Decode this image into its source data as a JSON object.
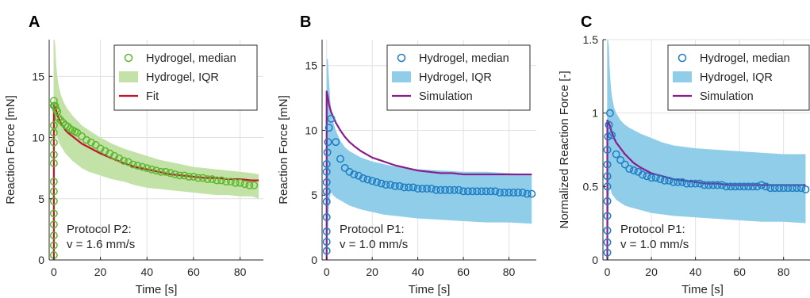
{
  "colors": {
    "green_marker": "#5cb82b",
    "green_band": "#c3e2a8",
    "red_line": "#c4122f",
    "blue_marker": "#1d7dc4",
    "blue_band": "#8fcde9",
    "purple_line": "#8a1d8e",
    "grid": "#e1e1e1",
    "axis": "#262626"
  },
  "chart_data": [
    {
      "panel": "A",
      "type": "line",
      "xlabel": "Time [s]",
      "ylabel": "Reaction Force [mN]",
      "xlim": [
        -2,
        90
      ],
      "ylim": [
        0,
        18
      ],
      "xticks": [
        0,
        20,
        40,
        60,
        80
      ],
      "yticks": [
        0,
        5,
        10,
        15
      ],
      "grid": true,
      "legend_position": "top-right",
      "legend": [
        {
          "kind": "marker",
          "label": "Hydrogel, median"
        },
        {
          "kind": "band",
          "label": "Hydrogel, IQR"
        },
        {
          "kind": "line",
          "label": "Fit"
        }
      ],
      "annotation": {
        "line1": "Protocol P2:",
        "line2": "v = 1.6 mm/s"
      },
      "marker_color": "#5cb82b",
      "band_color": "#c3e2a8",
      "line_color": "#c4122f",
      "median": {
        "x": [
          0,
          0,
          0,
          0,
          0,
          0,
          0,
          0,
          0,
          0,
          0,
          0,
          0,
          0,
          0,
          0.5,
          1,
          1.5,
          2,
          3,
          4,
          5,
          6,
          7,
          8,
          9,
          10,
          12,
          14,
          16,
          18,
          20,
          22,
          24,
          26,
          28,
          30,
          32,
          34,
          36,
          38,
          40,
          42,
          44,
          46,
          48,
          50,
          52,
          54,
          56,
          58,
          60,
          62,
          64,
          66,
          68,
          70,
          72,
          74,
          76,
          78,
          80,
          82,
          84,
          86
        ],
        "y": [
          0.4,
          1.2,
          2,
          2.9,
          3.8,
          4.8,
          5.6,
          6.4,
          7.9,
          8.6,
          9.6,
          10.4,
          11,
          12.6,
          13,
          12.6,
          12.3,
          12.1,
          11.6,
          11.4,
          11.2,
          11,
          10.9,
          10.7,
          10.6,
          10.5,
          10.4,
          10.1,
          9.8,
          9.6,
          9.4,
          9.1,
          8.9,
          8.7,
          8.5,
          8.3,
          8.1,
          8,
          7.8,
          7.7,
          7.6,
          7.5,
          7.4,
          7.3,
          7.2,
          7.2,
          7.1,
          7,
          6.9,
          6.9,
          6.8,
          6.8,
          6.7,
          6.7,
          6.6,
          6.6,
          6.5,
          6.5,
          6.4,
          6.4,
          6.3,
          6.3,
          6.2,
          6.1,
          6.1
        ]
      },
      "iqr": {
        "x": [
          0,
          0.3,
          0.6,
          1,
          1.5,
          2,
          3,
          4,
          5,
          6,
          8,
          10,
          12,
          15,
          20,
          25,
          30,
          35,
          40,
          45,
          50,
          55,
          60,
          65,
          70,
          75,
          80,
          85,
          88
        ],
        "upper": [
          18,
          18,
          17.5,
          16,
          15,
          14.3,
          13.5,
          13,
          12.6,
          12.3,
          11.8,
          11.4,
          11,
          10.6,
          10,
          9.5,
          9.1,
          8.8,
          8.5,
          8.2,
          8,
          7.8,
          7.6,
          7.5,
          7.4,
          7.3,
          7.2,
          7.1,
          7
        ],
        "lower": [
          0,
          9.5,
          10.5,
          10.3,
          10,
          9.7,
          9.3,
          9,
          8.7,
          8.5,
          8.1,
          7.8,
          7.5,
          7.2,
          6.9,
          6.6,
          6.4,
          6.1,
          5.9,
          5.8,
          5.7,
          5.6,
          5.5,
          5.4,
          5.3,
          5.3,
          5.2,
          5.2,
          5
        ]
      },
      "fit": {
        "x": [
          0,
          0,
          0.5,
          1,
          2,
          3,
          4,
          5,
          6,
          8,
          10,
          12,
          15,
          20,
          25,
          30,
          35,
          40,
          45,
          50,
          55,
          60,
          65,
          70,
          75,
          80,
          85,
          88
        ],
        "y": [
          0,
          12.6,
          12.5,
          12.2,
          11.6,
          11.2,
          10.9,
          10.6,
          10.4,
          10.1,
          9.8,
          9.5,
          9.2,
          8.7,
          8.3,
          7.9,
          7.6,
          7.4,
          7.2,
          7,
          6.9,
          6.8,
          6.7,
          6.7,
          6.6,
          6.6,
          6.5,
          6.5
        ]
      }
    },
    {
      "panel": "B",
      "type": "line",
      "xlabel": "Time [s]",
      "ylabel": "Reaction Force [mN]",
      "xlim": [
        -2,
        92
      ],
      "ylim": [
        0,
        17
      ],
      "xticks": [
        0,
        20,
        40,
        60,
        80
      ],
      "yticks": [
        0,
        5,
        10,
        15
      ],
      "grid": true,
      "legend_position": "top-right",
      "legend": [
        {
          "kind": "marker",
          "label": "Hydrogel, median"
        },
        {
          "kind": "band",
          "label": "Hydrogel, IQR"
        },
        {
          "kind": "line",
          "label": "Simulation"
        }
      ],
      "annotation": {
        "line1": "Protocol P1:",
        "line2": "v = 1.0 mm/s"
      },
      "marker_color": "#1d7dc4",
      "band_color": "#8fcde9",
      "line_color": "#8a1d8e",
      "median": {
        "x": [
          0,
          0,
          0,
          0,
          0,
          0,
          0,
          0,
          0,
          0.3,
          0.6,
          1,
          2,
          4,
          6,
          8,
          10,
          12,
          14,
          16,
          18,
          20,
          22,
          24,
          26,
          28,
          30,
          32,
          34,
          36,
          38,
          40,
          42,
          44,
          46,
          48,
          50,
          52,
          54,
          56,
          58,
          60,
          62,
          64,
          66,
          68,
          70,
          72,
          74,
          76,
          78,
          80,
          82,
          84,
          86,
          88,
          90
        ],
        "y": [
          0.7,
          1.4,
          2.2,
          3.3,
          4.5,
          5.3,
          6,
          6.8,
          7.4,
          8.3,
          9.1,
          10.2,
          10.9,
          9.1,
          7.8,
          7.1,
          6.8,
          6.6,
          6.5,
          6.3,
          6.2,
          6.1,
          6,
          5.9,
          5.8,
          5.8,
          5.7,
          5.7,
          5.6,
          5.6,
          5.6,
          5.5,
          5.5,
          5.5,
          5.5,
          5.4,
          5.4,
          5.4,
          5.4,
          5.4,
          5.4,
          5.3,
          5.3,
          5.3,
          5.3,
          5.3,
          5.3,
          5.3,
          5.3,
          5.2,
          5.2,
          5.2,
          5.2,
          5.2,
          5.2,
          5.1,
          5.1
        ]
      },
      "iqr": {
        "x": [
          0,
          0.5,
          1,
          1.5,
          2,
          3,
          4,
          6,
          8,
          10,
          15,
          20,
          25,
          30,
          40,
          50,
          60,
          70,
          80,
          90
        ],
        "upper": [
          15.5,
          15.5,
          14,
          12.5,
          11.5,
          10.6,
          10,
          9.2,
          8.7,
          8.4,
          7.9,
          7.6,
          7.4,
          7.2,
          7,
          6.9,
          6.8,
          6.8,
          6.7,
          6.6
        ],
        "lower": [
          0,
          2,
          4,
          5,
          5.2,
          5,
          4.8,
          4.6,
          4.4,
          4.2,
          3.9,
          3.7,
          3.5,
          3.4,
          3.2,
          3.1,
          3,
          2.9,
          2.9,
          2.8
        ]
      },
      "simulation": {
        "x": [
          0,
          0,
          0.5,
          1,
          2,
          3,
          4,
          5,
          6,
          8,
          10,
          12,
          15,
          20,
          25,
          30,
          35,
          40,
          45,
          50,
          55,
          60,
          65,
          70,
          75,
          80,
          85,
          90
        ],
        "y": [
          0,
          13,
          12.6,
          12,
          11.4,
          11,
          10.6,
          10.3,
          10,
          9.5,
          9.1,
          8.8,
          8.4,
          7.9,
          7.6,
          7.3,
          7.1,
          6.9,
          6.8,
          6.7,
          6.7,
          6.6,
          6.6,
          6.6,
          6.6,
          6.6,
          6.6,
          6.6
        ]
      }
    },
    {
      "panel": "C",
      "type": "line",
      "xlabel": "Time [s]",
      "ylabel": "Normalized Reaction Force [-]",
      "xlim": [
        -2,
        92
      ],
      "ylim": [
        0,
        1.5
      ],
      "xticks": [
        0,
        20,
        40,
        60,
        80
      ],
      "yticks": [
        0,
        0.5,
        1,
        1.5
      ],
      "grid": true,
      "legend_position": "top-right",
      "legend": [
        {
          "kind": "marker",
          "label": "Hydrogel, median"
        },
        {
          "kind": "band",
          "label": "Hydrogel, IQR"
        },
        {
          "kind": "line",
          "label": "Simulation"
        }
      ],
      "annotation": {
        "line1": "Protocol P1:",
        "line2": "v = 1.0 mm/s"
      },
      "marker_color": "#1d7dc4",
      "band_color": "#8fcde9",
      "line_color": "#8a1d8e",
      "median": {
        "x": [
          0,
          0,
          0,
          0,
          0,
          0,
          0,
          0,
          0,
          0.3,
          0.7,
          1.2,
          2,
          4,
          6,
          8,
          10,
          12,
          14,
          16,
          18,
          20,
          22,
          24,
          26,
          28,
          30,
          32,
          34,
          36,
          38,
          40,
          42,
          44,
          46,
          48,
          50,
          52,
          54,
          56,
          58,
          60,
          62,
          64,
          66,
          68,
          70,
          72,
          74,
          76,
          78,
          80,
          82,
          84,
          86,
          88,
          90
        ],
        "y": [
          0.05,
          0.12,
          0.2,
          0.3,
          0.4,
          0.5,
          0.57,
          0.65,
          0.75,
          0.84,
          0.92,
          1,
          0.85,
          0.72,
          0.68,
          0.65,
          0.62,
          0.61,
          0.6,
          0.58,
          0.57,
          0.56,
          0.56,
          0.55,
          0.54,
          0.54,
          0.53,
          0.53,
          0.53,
          0.52,
          0.52,
          0.52,
          0.52,
          0.51,
          0.51,
          0.51,
          0.51,
          0.51,
          0.5,
          0.5,
          0.5,
          0.5,
          0.5,
          0.5,
          0.5,
          0.5,
          0.51,
          0.5,
          0.49,
          0.49,
          0.49,
          0.49,
          0.49,
          0.49,
          0.49,
          0.49,
          0.48
        ]
      },
      "iqr": {
        "x": [
          0,
          0.3,
          0.7,
          1,
          1.5,
          2,
          3,
          4,
          6,
          8,
          10,
          15,
          20,
          25,
          30,
          40,
          50,
          60,
          70,
          80,
          90
        ],
        "upper": [
          1.5,
          1.5,
          1.45,
          1.32,
          1.2,
          1.12,
          1.04,
          1,
          0.95,
          0.92,
          0.9,
          0.86,
          0.83,
          0.8,
          0.78,
          0.76,
          0.75,
          0.74,
          0.73,
          0.72,
          0.72
        ],
        "lower": [
          0,
          0.15,
          0.4,
          0.5,
          0.48,
          0.45,
          0.43,
          0.41,
          0.39,
          0.37,
          0.36,
          0.34,
          0.32,
          0.31,
          0.3,
          0.29,
          0.28,
          0.27,
          0.26,
          0.26,
          0.25
        ]
      },
      "simulation": {
        "x": [
          0,
          0,
          0.5,
          1,
          2,
          3,
          4,
          5,
          6,
          8,
          10,
          12,
          15,
          20,
          25,
          30,
          35,
          40,
          45,
          50,
          55,
          60,
          65,
          70,
          75,
          80,
          85,
          90
        ],
        "y": [
          0,
          0.95,
          0.94,
          0.92,
          0.87,
          0.83,
          0.8,
          0.78,
          0.76,
          0.72,
          0.69,
          0.66,
          0.63,
          0.59,
          0.57,
          0.55,
          0.54,
          0.53,
          0.52,
          0.52,
          0.51,
          0.51,
          0.51,
          0.51,
          0.51,
          0.51,
          0.51,
          0.51
        ]
      }
    }
  ]
}
